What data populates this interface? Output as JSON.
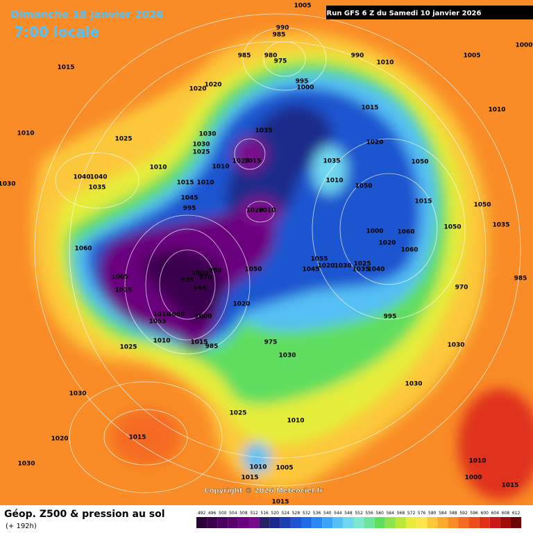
{
  "header": {
    "date": "Dimanche 18 janvier 2026",
    "time": "7:00 locale",
    "run": "Run GFS 6 Z du Samedi 10 janvier 2026"
  },
  "map": {
    "isobar_labels": [
      1005,
      990,
      985,
      985,
      980,
      975,
      990,
      1010,
      1005,
      1000,
      1015,
      1020,
      1020,
      995,
      1000,
      1015,
      1010,
      1010,
      1025,
      1030,
      1035,
      1020,
      1030,
      1025,
      1025,
      1015,
      1010,
      1035,
      1050,
      1040,
      1040,
      1035,
      1030,
      1015,
      1010,
      1010,
      1050,
      1045,
      1015,
      1050,
      995,
      1020,
      1010,
      1050,
      1035,
      1000,
      1060,
      1060,
      1020,
      1060,
      1055,
      1025,
      1045,
      1020,
      1030,
      1035,
      1040,
      1050,
      1005,
      1000,
      980,
      970,
      975,
      985,
      1015,
      995,
      970,
      1020,
      1010,
      1005,
      1000,
      995,
      1055,
      1010,
      1015,
      985,
      975,
      1025,
      1030,
      1030,
      1030,
      1030,
      1025,
      1010,
      1020,
      1015,
      1030,
      1010,
      1005,
      1010,
      1015,
      1000,
      1015,
      1015,
      1010
    ],
    "copyright": "Copyright © 2026 Meteociel.fr"
  },
  "footer": {
    "title": "Géop. Z500 & pression au sol",
    "lead": "(+ 192h)"
  },
  "scale": {
    "values": [
      492,
      496,
      500,
      504,
      508,
      512,
      516,
      520,
      524,
      528,
      532,
      536,
      540,
      544,
      548,
      552,
      556,
      560,
      564,
      568,
      572,
      576,
      580,
      584,
      588,
      592,
      596,
      600,
      604,
      608,
      612
    ],
    "colors": [
      "#2b0038",
      "#3a004d",
      "#4b0060",
      "#5a006e",
      "#6b007e",
      "#7a0a8c",
      "#262066",
      "#1b2a8a",
      "#1a3fb0",
      "#1f55d0",
      "#1e6ae8",
      "#2a88f5",
      "#3aa4f8",
      "#55c0f5",
      "#6fd8ee",
      "#7ee8cf",
      "#6ee39a",
      "#5fdd5f",
      "#8fe34a",
      "#bde83a",
      "#e5ed3a",
      "#fde54a",
      "#fcc83a",
      "#fbaa2e",
      "#f98c26",
      "#f56b20",
      "#ee4d1b",
      "#e0301a",
      "#c81818",
      "#9e0c0c",
      "#6a0505"
    ]
  }
}
